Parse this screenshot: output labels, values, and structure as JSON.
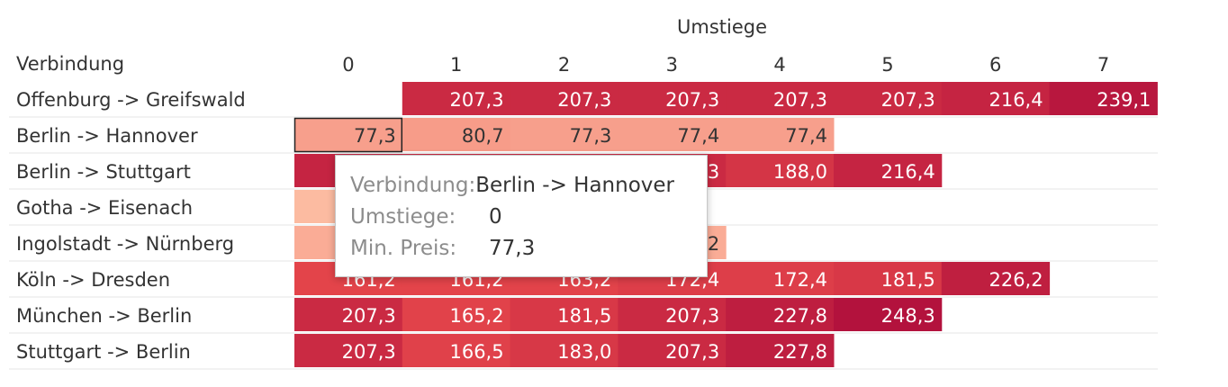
{
  "chart_data": {
    "type": "heatmap",
    "column_header": "Umstiege",
    "row_header": "Verbindung",
    "columns": [
      "0",
      "1",
      "2",
      "3",
      "4",
      "5",
      "6",
      "7"
    ],
    "rows": [
      {
        "label": "Offenburg -> Greifswald",
        "values": [
          null,
          207.3,
          207.3,
          207.3,
          207.3,
          207.3,
          216.4,
          239.1
        ]
      },
      {
        "label": "Berlin -> Hannover",
        "values": [
          77.3,
          80.7,
          77.3,
          77.4,
          77.4,
          null,
          null,
          null
        ]
      },
      {
        "label": "Berlin -> Stuttgart",
        "values": [
          216.4,
          207.3,
          207.3,
          207.3,
          188.0,
          216.4,
          null,
          null
        ]
      },
      {
        "label": "Gotha -> Eisenach",
        "values": [
          53.6,
          null,
          null,
          null,
          null,
          null,
          null,
          null
        ]
      },
      {
        "label": "Ingolstadt -> Nürnberg",
        "values": [
          66.2,
          66.2,
          66.2,
          66.2,
          null,
          null,
          null,
          null
        ]
      },
      {
        "label": "Köln -> Dresden",
        "values": [
          161.2,
          161.2,
          163.2,
          172.4,
          172.4,
          181.5,
          226.2,
          null
        ]
      },
      {
        "label": "München -> Berlin",
        "values": [
          207.3,
          165.2,
          181.5,
          207.3,
          227.8,
          248.3,
          null,
          null
        ]
      },
      {
        "label": "Stuttgart -> Berlin",
        "values": [
          207.3,
          166.5,
          183.0,
          207.3,
          227.8,
          null,
          null,
          null
        ]
      }
    ],
    "color_scale": {
      "low": "#fcbba1",
      "high": "#b3123d"
    },
    "selected_cell": {
      "row": 1,
      "col": 0
    }
  },
  "tooltip": {
    "rows": [
      {
        "key": "Verbindung:",
        "value": "Berlin -> Hannover"
      },
      {
        "key": "Umstiege:",
        "value": "0"
      },
      {
        "key": "Min. Preis:",
        "value": "77,3"
      }
    ]
  }
}
